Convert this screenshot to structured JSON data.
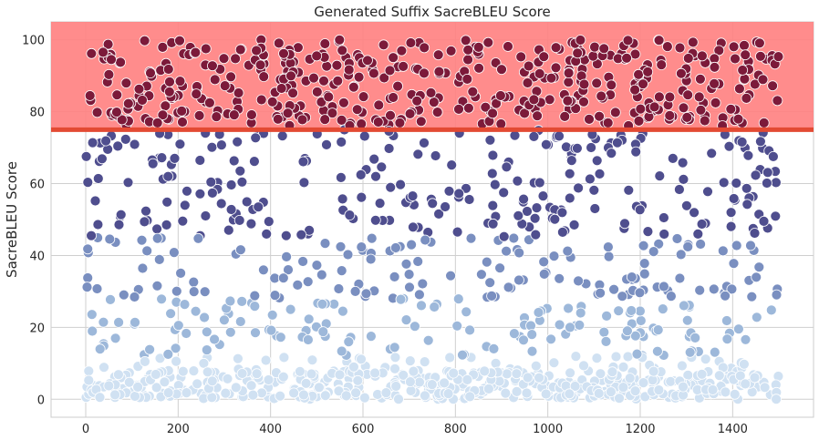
{
  "chart_data": {
    "type": "scatter",
    "title": "Generated Suffix SacreBLEU Score",
    "xlabel": "",
    "ylabel": "SacreBLEU Score",
    "xlim": [
      -75,
      1575
    ],
    "ylim": [
      -5,
      105
    ],
    "xticks": [
      0,
      200,
      400,
      600,
      800,
      1000,
      1200,
      1400
    ],
    "yticks": [
      0,
      20,
      40,
      60,
      80,
      100
    ],
    "grid": true,
    "threshold": {
      "value": 75,
      "color": "#e34a33",
      "band_upper": 105,
      "band_color": "#ff8080"
    },
    "colormap": [
      "#d0e1f2",
      "#9db8da",
      "#7a8fc0",
      "#4f4e8e",
      "#7c1a3a"
    ],
    "point_count": 1500,
    "points_x_range": [
      0,
      1500
    ],
    "points_y_range": [
      0,
      100
    ],
    "distribution_note": "dense near 0–10, spread 10–75, cluster above 75"
  }
}
